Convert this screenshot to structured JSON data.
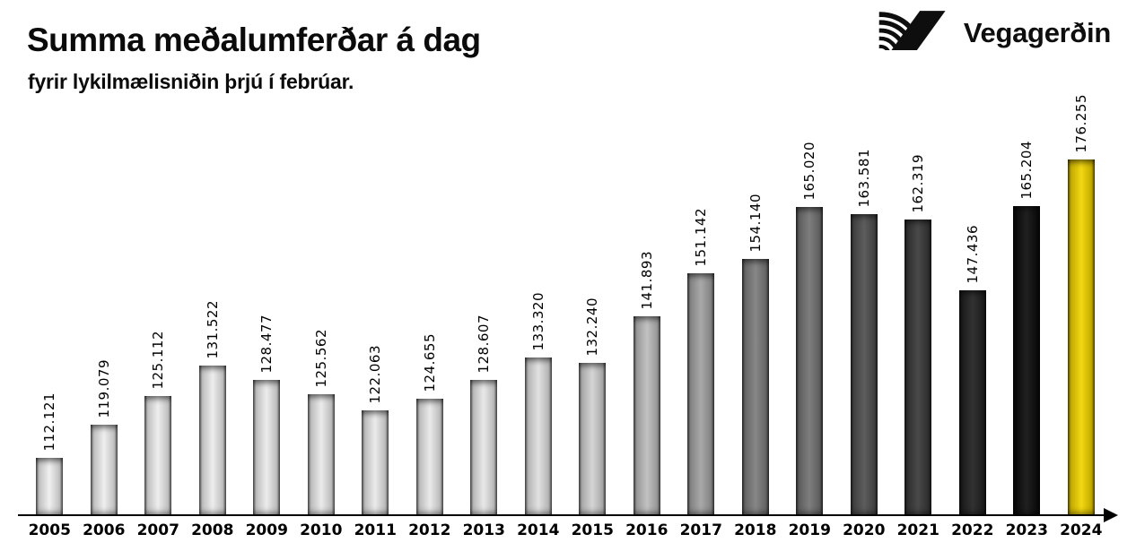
{
  "header": {
    "title": "Summa meðalumferðar á dag",
    "subtitle": "fyrir lykilmælisniðin þrjú í febrúar.",
    "logo_text": "Vegagerðin"
  },
  "chart_data": {
    "type": "bar",
    "title": "Summa meðalumferðar á dag",
    "subtitle": "fyrir lykilmælisniðin þrjú í febrúar.",
    "xlabel": "",
    "ylabel": "",
    "categories": [
      "2005",
      "2006",
      "2007",
      "2008",
      "2009",
      "2010",
      "2011",
      "2012",
      "2013",
      "2014",
      "2015",
      "2016",
      "2017",
      "2018",
      "2019",
      "2020",
      "2021",
      "2022",
      "2023",
      "2024"
    ],
    "values": [
      112121,
      119079,
      125112,
      131522,
      128477,
      125562,
      122063,
      124655,
      128607,
      133320,
      132240,
      141893,
      151142,
      154140,
      165020,
      163581,
      162319,
      147436,
      165204,
      176255
    ],
    "value_labels": [
      "112.121",
      "119.079",
      "125.112",
      "131.522",
      "128.477",
      "125.562",
      "122.063",
      "124.655",
      "128.607",
      "133.320",
      "132.240",
      "141.893",
      "151.142",
      "154.140",
      "165.020",
      "163.581",
      "162.319",
      "147.436",
      "165.204",
      "176.255"
    ],
    "bar_colors": [
      "#efefef",
      "#eeeeee",
      "#ededed",
      "#ececec",
      "#ebebeb",
      "#eaeaea",
      "#e9e9e9",
      "#e8e8e8",
      "#e6e6e6",
      "#e0e0e0",
      "#d2d2d2",
      "#bdbdbd",
      "#a3a3a3",
      "#7e7e7e",
      "#747474",
      "#515151",
      "#3b3b3b",
      "#232323",
      "#0f0f0f",
      "#f2d500"
    ],
    "highlight_year": "2024",
    "highlight_color": "#f2d500",
    "ylim": [
      100000,
      180000
    ],
    "grid": false,
    "legend": false,
    "x_axis_arrow": true,
    "value_label_rotation": 90
  }
}
